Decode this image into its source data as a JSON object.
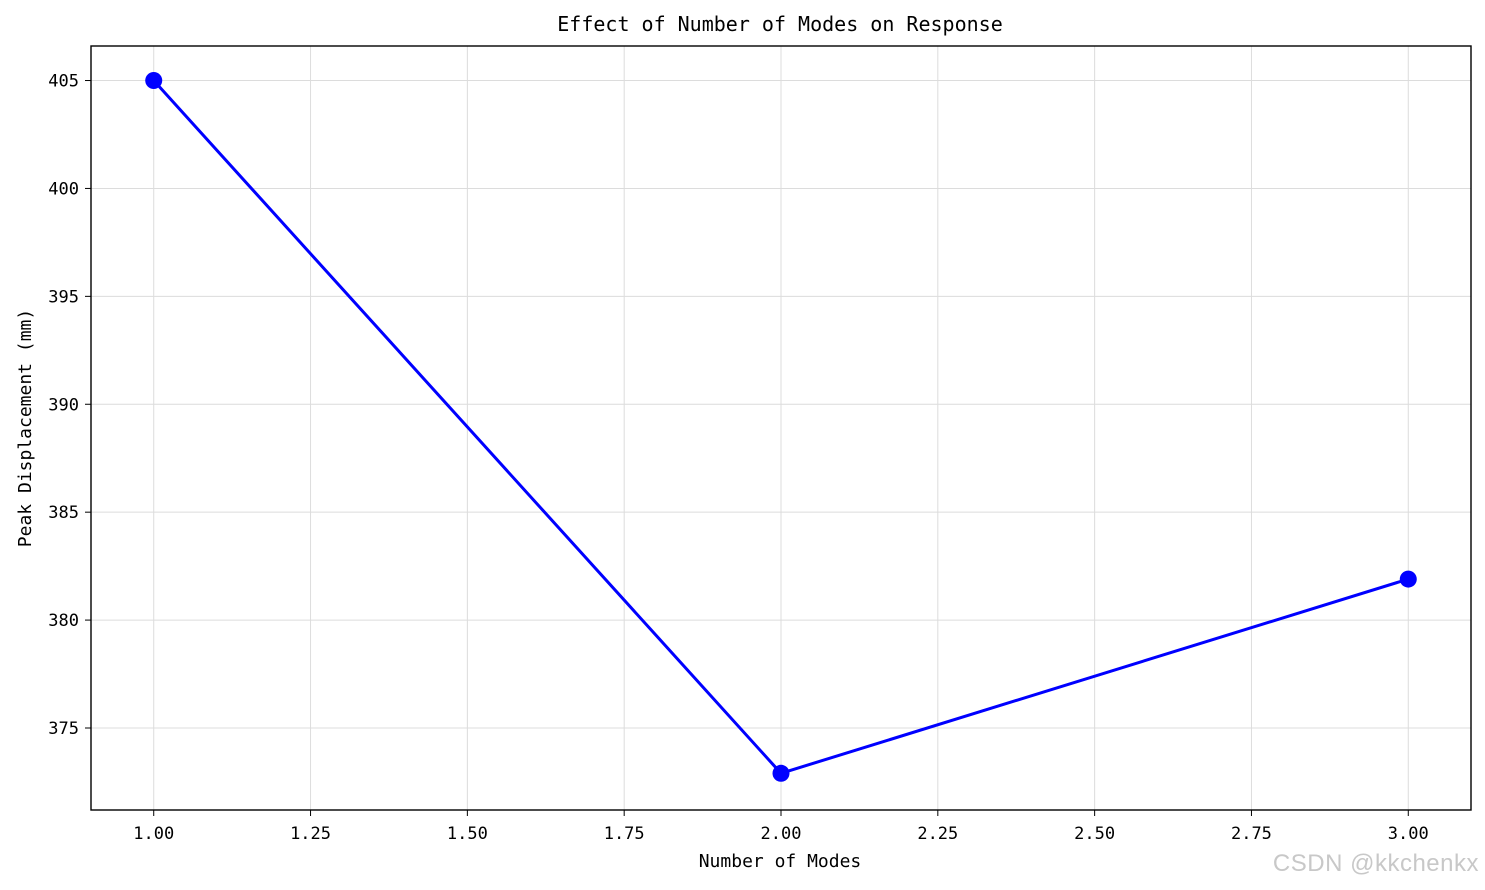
{
  "chart_data": {
    "type": "line",
    "title": "Effect of Number of Modes on Response",
    "xlabel": "Number of Modes",
    "ylabel": "Peak Displacement (mm)",
    "x": [
      1,
      2,
      3
    ],
    "series": [
      {
        "values": [
          405.0,
          372.9,
          381.9
        ]
      }
    ],
    "xlim": [
      0.9,
      3.1
    ],
    "ylim": [
      371.2,
      406.6
    ],
    "xticks": [
      1.0,
      1.25,
      1.5,
      1.75,
      2.0,
      2.25,
      2.5,
      2.75,
      3.0
    ],
    "xtick_labels": [
      "1.00",
      "1.25",
      "1.50",
      "1.75",
      "2.00",
      "2.25",
      "2.50",
      "2.75",
      "3.00"
    ],
    "yticks": [
      375,
      380,
      385,
      390,
      395,
      400,
      405
    ],
    "ytick_labels": [
      "375",
      "380",
      "385",
      "390",
      "395",
      "400",
      "405"
    ],
    "grid": true,
    "line_color": "#0000ff",
    "marker": "circle"
  },
  "watermark": "CSDN @kkchenkx"
}
